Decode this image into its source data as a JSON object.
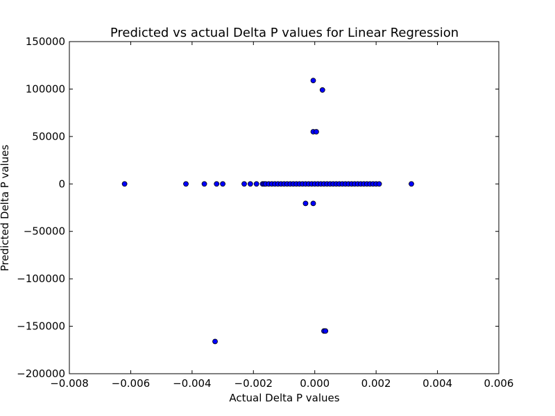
{
  "chart_data": {
    "type": "scatter",
    "title": "Predicted vs actual Delta P values for Linear Regression",
    "xlabel": "Actual Delta P values",
    "ylabel": "Predicted Delta P values",
    "xlim": [
      -0.008,
      0.006
    ],
    "ylim": [
      -200000,
      150000
    ],
    "xticks": [
      -0.008,
      -0.006,
      -0.004,
      -0.002,
      0.0,
      0.002,
      0.004,
      0.006
    ],
    "xtick_labels": [
      "−0.008",
      "−0.006",
      "−0.004",
      "−0.002",
      "0.000",
      "0.002",
      "0.004",
      "0.006"
    ],
    "yticks": [
      150000,
      100000,
      50000,
      0,
      -50000,
      -100000,
      -150000,
      -200000
    ],
    "ytick_labels": [
      "150000",
      "100000",
      "50000",
      "0",
      "−50000",
      "−100000",
      "−150000",
      "−200000"
    ],
    "grid": false,
    "marker_color": "#0000ff",
    "marker_edge_color": "#000000",
    "points": [
      [
        -0.0062,
        0
      ],
      [
        -0.0042,
        0
      ],
      [
        -0.0036,
        0
      ],
      [
        -0.0032,
        0
      ],
      [
        -0.003,
        0
      ],
      [
        -0.0023,
        0
      ],
      [
        -0.0021,
        0
      ],
      [
        -0.0019,
        0
      ],
      [
        -0.0017,
        0
      ],
      [
        -0.00165,
        0
      ],
      [
        -0.0016,
        0
      ],
      [
        -0.0015,
        0
      ],
      [
        -0.0014,
        0
      ],
      [
        -0.0013,
        0
      ],
      [
        -0.0012,
        0
      ],
      [
        -0.0011,
        0
      ],
      [
        -0.001,
        0
      ],
      [
        -0.0009,
        0
      ],
      [
        -0.0008,
        0
      ],
      [
        -0.0007,
        0
      ],
      [
        -0.0006,
        0
      ],
      [
        -0.0005,
        0
      ],
      [
        -0.0004,
        0
      ],
      [
        -0.0003,
        0
      ],
      [
        -0.0002,
        0
      ],
      [
        -0.0001,
        0
      ],
      [
        0.0,
        0
      ],
      [
        0.0001,
        0
      ],
      [
        0.0002,
        0
      ],
      [
        0.0003,
        0
      ],
      [
        0.0004,
        0
      ],
      [
        0.0005,
        0
      ],
      [
        0.0006,
        0
      ],
      [
        0.0007,
        0
      ],
      [
        0.0008,
        0
      ],
      [
        0.0009,
        0
      ],
      [
        0.001,
        0
      ],
      [
        0.0011,
        0
      ],
      [
        0.0012,
        0
      ],
      [
        0.0013,
        0
      ],
      [
        0.0014,
        0
      ],
      [
        0.0015,
        0
      ],
      [
        0.0016,
        0
      ],
      [
        0.0017,
        0
      ],
      [
        0.0018,
        0
      ],
      [
        0.0019,
        0
      ],
      [
        0.002,
        0
      ],
      [
        0.0021,
        0
      ],
      [
        0.00315,
        0
      ],
      [
        -5e-05,
        109000
      ],
      [
        0.00025,
        99000
      ],
      [
        -5e-05,
        55000
      ],
      [
        5e-05,
        55000
      ],
      [
        -0.0003,
        -20500
      ],
      [
        -5e-05,
        -20500
      ],
      [
        0.0003,
        -155000
      ],
      [
        0.00035,
        -155000
      ],
      [
        -0.00325,
        -166000
      ]
    ]
  }
}
